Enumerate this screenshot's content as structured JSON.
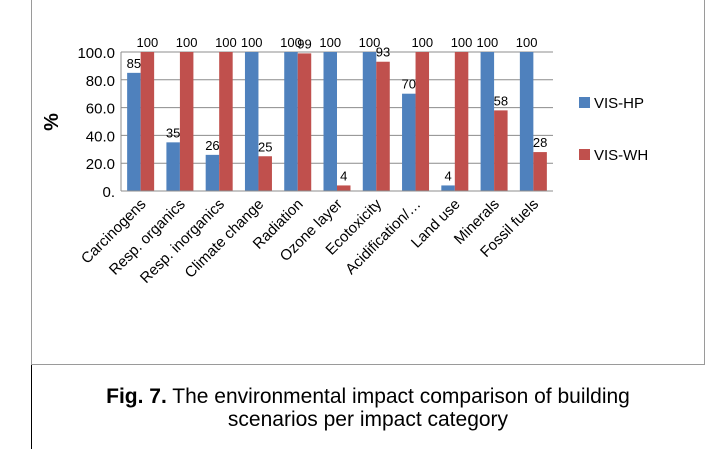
{
  "chart_data": {
    "type": "bar",
    "categories": [
      "Carcinogens",
      "Resp. organics",
      "Resp. inorganics",
      "Climate change",
      "Radiation",
      "Ozone layer",
      "Ecotoxicity",
      "Acidification/…",
      "Land use",
      "Minerals",
      "Fossil fuels"
    ],
    "series": [
      {
        "name": "VIS-HP",
        "values": [
          85,
          35,
          26,
          100,
          100,
          100,
          100,
          70,
          4,
          100,
          100
        ],
        "color": "#4f81bd"
      },
      {
        "name": "VIS-WH",
        "values": [
          100,
          100,
          100,
          25,
          99,
          4,
          93,
          100,
          100,
          58,
          28
        ],
        "color": "#c0504d"
      }
    ],
    "ylabel": "%",
    "ylim": [
      0,
      100
    ],
    "yticks": [
      "0.",
      "20.0",
      "40.0",
      "60.0",
      "80.0",
      "100.0"
    ],
    "grid": true,
    "legend": "right"
  },
  "caption": {
    "label": "Fig. 7.",
    "text": " The environmental impact comparison of building scenarios per impact category"
  }
}
